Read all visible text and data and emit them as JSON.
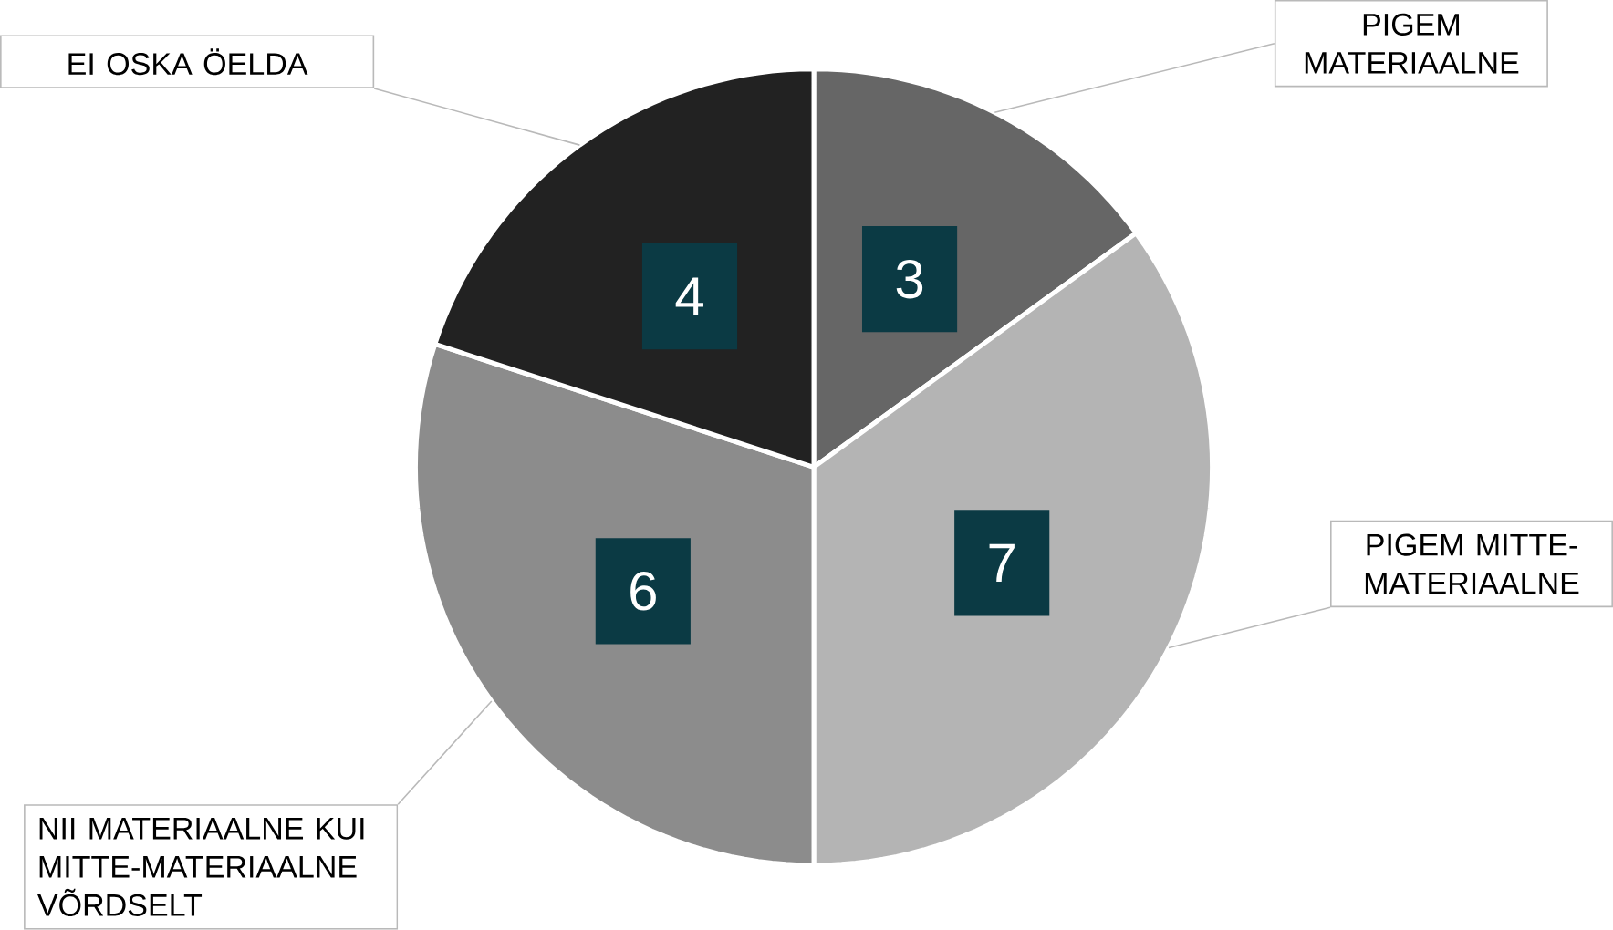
{
  "chart_data": {
    "type": "pie",
    "categories": [
      "PIGEM MATERIAALNE",
      "PIGEM MITTE-MATERIAALNE",
      "NII MATERIAALNE KUI MITTE-MATERIAALNE VÕRDSELT",
      "EI OSKA ÖELDA"
    ],
    "values": [
      3,
      7,
      6,
      4
    ],
    "colors": [
      "#666666",
      "#b4b4b4",
      "#8c8c8c",
      "#222222"
    ],
    "data_labels": true
  }
}
